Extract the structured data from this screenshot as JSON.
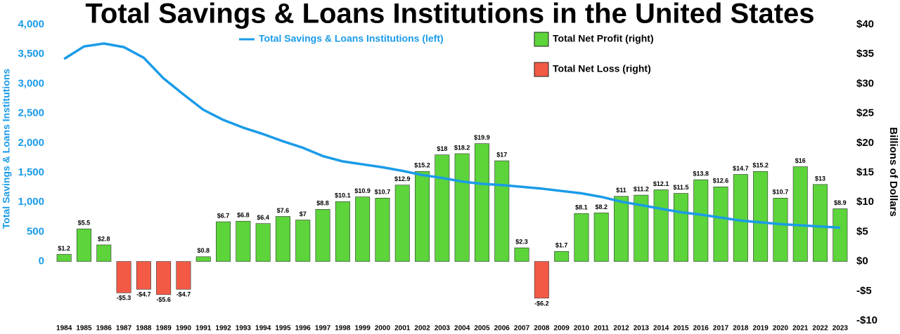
{
  "chart_data": {
    "type": "bar",
    "title": "Total Savings & Loans Institutions in the United States",
    "ylabel": "Total Savings & Loans Institutions",
    "y2label": "Billions of Dollars",
    "categories": [
      "1984",
      "1985",
      "1986",
      "1987",
      "1988",
      "1989",
      "1990",
      "1991",
      "1992",
      "1993",
      "1994",
      "1995",
      "1996",
      "1997",
      "1998",
      "1999",
      "2000",
      "2001",
      "2002",
      "2003",
      "2004",
      "2005",
      "2006",
      "2007",
      "2008",
      "2009",
      "2010",
      "2011",
      "2012",
      "2013",
      "2014",
      "2015",
      "2016",
      "2017",
      "2018",
      "2019",
      "2020",
      "2021",
      "2022",
      "2023"
    ],
    "series": [
      {
        "name": "Total Savings & Loans Institutions (left)",
        "type": "line",
        "axis": "y",
        "color": "#1a9be8",
        "values": [
          3420,
          3630,
          3680,
          3620,
          3440,
          3090,
          2820,
          2560,
          2390,
          2260,
          2150,
          2030,
          1920,
          1780,
          1690,
          1640,
          1590,
          1530,
          1460,
          1410,
          1350,
          1310,
          1290,
          1260,
          1230,
          1190,
          1150,
          1090,
          1010,
          950,
          890,
          830,
          790,
          740,
          690,
          660,
          630,
          610,
          590,
          570
        ]
      },
      {
        "name": "Total Net Profit (right)",
        "type": "bar",
        "axis": "y2",
        "color": "#5cd43a",
        "values": [
          1.2,
          5.5,
          2.8,
          null,
          null,
          null,
          null,
          0.8,
          6.7,
          6.8,
          6.4,
          7.6,
          7,
          8.8,
          10.1,
          10.9,
          10.7,
          12.9,
          15.2,
          18,
          18.2,
          19.9,
          17,
          2.3,
          null,
          1.7,
          8.1,
          8.2,
          11,
          11.2,
          12.1,
          11.5,
          13.8,
          12.6,
          14.7,
          15.2,
          10.7,
          16,
          13,
          8.9
        ],
        "value_labels": [
          "$1.2",
          "$5.5",
          "$2.8",
          null,
          null,
          null,
          null,
          "$0.8",
          "$6.7",
          "$6.8",
          "$6.4",
          "$7.6",
          "$7",
          "$8.8",
          "$10.1",
          "$10.9",
          "$10.7",
          "$12.9",
          "$15.2",
          "$18",
          "$18.2",
          "$19.9",
          "$17",
          "$2.3",
          null,
          "$1.7",
          "$8.1",
          "$8.2",
          "$11",
          "$11.2",
          "$12.1",
          "$11.5",
          "$13.8",
          "$12.6",
          "$14.7",
          "$15.2",
          "$10.7",
          "$16",
          "$13",
          "$8.9"
        ]
      },
      {
        "name": "Total Net Loss (right)",
        "type": "bar",
        "axis": "y2",
        "color": "#f35a45",
        "values": [
          null,
          null,
          null,
          -5.3,
          -4.7,
          -5.6,
          -4.7,
          null,
          null,
          null,
          null,
          null,
          null,
          null,
          null,
          null,
          null,
          null,
          null,
          null,
          null,
          null,
          null,
          null,
          -6.2,
          null,
          null,
          null,
          null,
          null,
          null,
          null,
          null,
          null,
          null,
          null,
          null,
          null,
          null,
          null
        ],
        "value_labels": [
          null,
          null,
          null,
          "-$5.3",
          "-$4.7",
          "-$5.6",
          "-$4.7",
          null,
          null,
          null,
          null,
          null,
          null,
          null,
          null,
          null,
          null,
          null,
          null,
          null,
          null,
          null,
          null,
          null,
          "-$6.2",
          null,
          null,
          null,
          null,
          null,
          null,
          null,
          null,
          null,
          null,
          null,
          null,
          null,
          null,
          null
        ]
      }
    ],
    "ylim": [
      -1000,
      4000
    ],
    "yticks": [
      0,
      500,
      {
        "value": 1000,
        "label": "1,000"
      },
      {
        "value": 1500,
        "label": "1,500"
      },
      {
        "value": 2000,
        "label": "2,000"
      },
      {
        "value": 2500,
        "label": "2,500"
      },
      {
        "value": 3000,
        "label": "3,000"
      },
      {
        "value": 3500,
        "label": "3,500"
      },
      {
        "value": 4000,
        "label": "4,000"
      }
    ],
    "y2lim": [
      -10,
      40
    ],
    "y2ticks": [
      {
        "value": -10,
        "label": "-$10"
      },
      {
        "value": -5,
        "label": "-$5"
      },
      {
        "value": 0,
        "label": "$0"
      },
      {
        "value": 5,
        "label": "$5"
      },
      {
        "value": 10,
        "label": "$10"
      },
      {
        "value": 15,
        "label": "$15"
      },
      {
        "value": 20,
        "label": "$20"
      },
      {
        "value": 25,
        "label": "$25"
      },
      {
        "value": 30,
        "label": "$30"
      },
      {
        "value": 35,
        "label": "$35"
      },
      {
        "value": 40,
        "label": "$40"
      }
    ]
  }
}
